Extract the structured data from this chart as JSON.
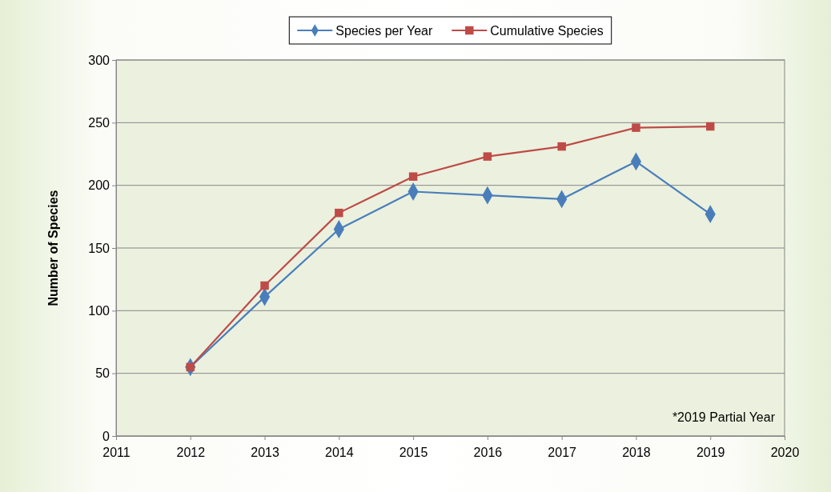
{
  "chart_data": {
    "type": "line",
    "ylabel": "Number of Species",
    "x": [
      2012,
      2013,
      2014,
      2015,
      2016,
      2017,
      2018,
      2019
    ],
    "series": [
      {
        "name": "Species per Year",
        "color": "#4a7ebb",
        "marker": "diamond",
        "values": [
          55,
          111,
          165,
          195,
          192,
          189,
          219,
          177
        ]
      },
      {
        "name": "Cumulative Species",
        "color": "#be4b48",
        "marker": "square",
        "values": [
          55,
          120,
          178,
          207,
          223,
          231,
          246,
          247
        ]
      }
    ],
    "xlim": [
      2011,
      2020
    ],
    "xticks": [
      2011,
      2012,
      2013,
      2014,
      2015,
      2016,
      2017,
      2018,
      2019,
      2020
    ],
    "ylim": [
      0,
      300
    ],
    "yticks": [
      0,
      50,
      100,
      150,
      200,
      250,
      300
    ],
    "grid": "y",
    "legend": "top",
    "line_style": "solid",
    "annotations": [
      "*2019 Partial Year"
    ]
  }
}
